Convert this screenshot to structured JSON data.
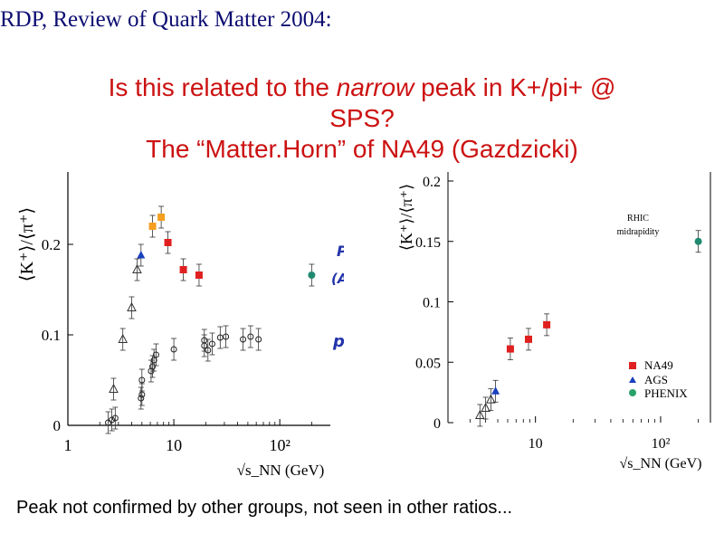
{
  "slide": {
    "header": "RDP, Review of Quark Matter 2004:",
    "title_part1": "Is this related to the ",
    "title_emphasis": "narrow",
    "title_part2": " peak in K+/pi+ @",
    "title_line2": "SPS?",
    "title_line3": "The “Matter.Horn” of NA49 (Gazdzicki)",
    "footer": "Peak not confirmed by other groups, not seen in other ratios..."
  },
  "chart_data": [
    {
      "type": "scatter",
      "title": "",
      "ylabel": "⟨K⁺⟩/⟨π⁺⟩",
      "xlabel": "√s_NN (GeV)",
      "xscale": "log",
      "xlim": [
        1,
        300
      ],
      "ylim": [
        0,
        0.28
      ],
      "xticks": [
        "1",
        "10",
        "10²"
      ],
      "yticks": [
        "0",
        "0.1",
        "0.2"
      ],
      "annotations": [
        "Pb+Pb",
        "(Au+Au)",
        "p+p"
      ],
      "series": [
        {
          "marker": "square",
          "color": "#e02020",
          "points": [
            [
              8.8,
              0.202
            ],
            [
              12.3,
              0.172
            ],
            [
              17.3,
              0.166
            ]
          ]
        },
        {
          "marker": "square",
          "color": "#f5a020",
          "points": [
            [
              7.6,
              0.23
            ],
            [
              6.3,
              0.22
            ]
          ]
        },
        {
          "marker": "triangle",
          "color": "#1a3fbf",
          "points": [
            [
              4.9,
              0.188
            ]
          ]
        },
        {
          "marker": "circle",
          "color": "#1f8a70",
          "points": [
            [
              200,
              0.166
            ]
          ]
        },
        {
          "marker": "triangle-open",
          "color": "#333333",
          "points": [
            [
              2.7,
              0.04
            ],
            [
              3.3,
              0.095
            ],
            [
              4.0,
              0.13
            ],
            [
              4.5,
              0.172
            ]
          ]
        },
        {
          "marker": "circle-open",
          "color": "#222222",
          "points": [
            [
              2.4,
              0.003
            ],
            [
              2.6,
              0.006
            ],
            [
              2.8,
              0.008
            ],
            [
              4.9,
              0.03
            ],
            [
              5.0,
              0.034
            ],
            [
              5.0,
              0.05
            ],
            [
              6.1,
              0.06
            ],
            [
              6.3,
              0.065
            ],
            [
              6.5,
              0.072
            ],
            [
              6.8,
              0.078
            ],
            [
              10,
              0.084
            ],
            [
              19.4,
              0.088
            ],
            [
              19.4,
              0.094
            ],
            [
              21,
              0.083
            ],
            [
              23,
              0.09
            ],
            [
              27.4,
              0.097
            ],
            [
              31,
              0.098
            ],
            [
              45,
              0.095
            ],
            [
              53,
              0.098
            ],
            [
              63,
              0.095
            ]
          ]
        }
      ]
    },
    {
      "type": "scatter",
      "title": "",
      "ylabel": "⟨K⁺⟩/⟨π⁺⟩",
      "xlabel": "√s_NN (GeV)",
      "xscale": "log",
      "xlim": [
        2,
        250
      ],
      "ylim": [
        0,
        0.2
      ],
      "xticks": [
        "10",
        "10²"
      ],
      "yticks": [
        "0",
        "0.05",
        "0.1",
        "0.15",
        "0.2"
      ],
      "annotations": [
        "RHIC",
        "midrapidity"
      ],
      "legend": [
        "NA49",
        "AGS",
        "PHENIX"
      ],
      "legend_position": "bottom-right",
      "series": [
        {
          "name": "NA49",
          "marker": "square",
          "color": "#e02020",
          "points": [
            [
              6.3,
              0.061
            ],
            [
              8.8,
              0.069
            ],
            [
              12.3,
              0.081
            ]
          ]
        },
        {
          "name": "AGS",
          "marker": "triangle",
          "color": "#1a3fbf",
          "points": [
            [
              4.8,
              0.026
            ]
          ]
        },
        {
          "name": "PHENIX",
          "marker": "circle",
          "color": "#1f8a70",
          "points": [
            [
              200,
              0.15
            ]
          ]
        },
        {
          "marker": "triangle-open",
          "color": "#333333",
          "points": [
            [
              3.6,
              0.006
            ],
            [
              4.0,
              0.012
            ],
            [
              4.4,
              0.019
            ]
          ]
        }
      ]
    }
  ]
}
